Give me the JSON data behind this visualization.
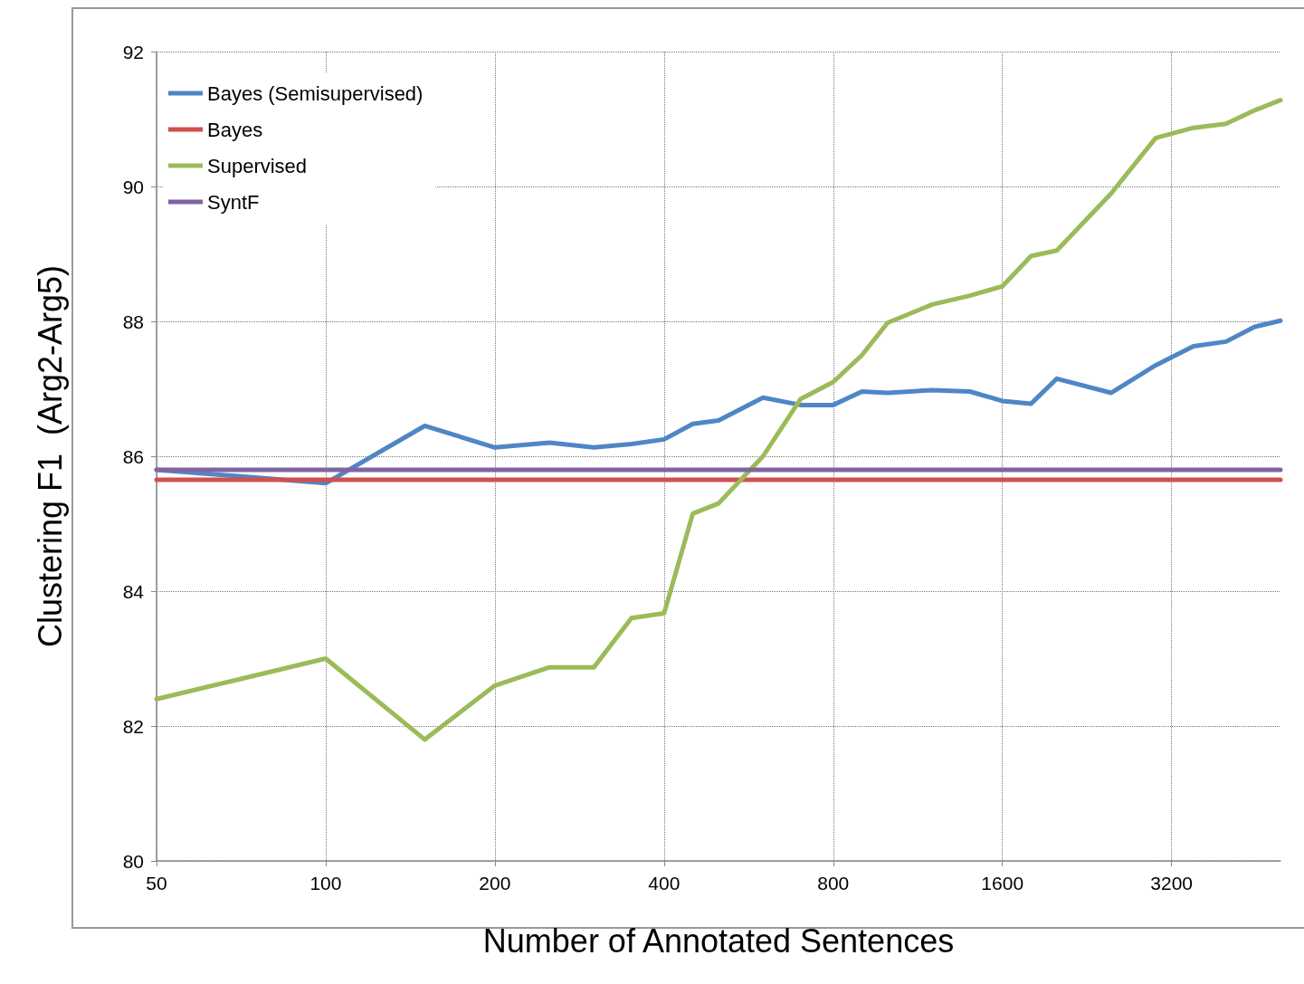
{
  "chart_data": {
    "type": "line",
    "xlabel": "Number of Annotated Sentences",
    "ylabel": "Clustering F1  (Arg2-Arg5)",
    "log": "x",
    "xlim": [
      50,
      5000
    ],
    "xticks": [
      50,
      100,
      200,
      400,
      800,
      1600,
      3200
    ],
    "ylim": [
      80,
      92
    ],
    "yticks": [
      80,
      82,
      84,
      86,
      88,
      90,
      92
    ],
    "grid": true,
    "legend": "top left",
    "marker": "none",
    "line_style": "solid",
    "series": [
      {
        "name": "Bayes (Semisupervised)",
        "color": "#4f86c6",
        "x": [
          50,
          100,
          150,
          200,
          250,
          300,
          350,
          400,
          450,
          500,
          600,
          700,
          800,
          900,
          1000,
          1200,
          1400,
          1600,
          1800,
          2000,
          2500,
          3000,
          3500,
          4000,
          4500,
          5000
        ],
        "values": [
          85.8,
          85.6,
          86.45,
          86.13,
          86.2,
          86.13,
          86.18,
          86.25,
          86.48,
          86.53,
          86.87,
          86.76,
          86.76,
          86.96,
          86.94,
          86.98,
          86.96,
          86.82,
          86.78,
          87.15,
          86.94,
          87.35,
          87.63,
          87.7,
          87.92,
          88.01
        ]
      },
      {
        "name": "Bayes",
        "color": "#d0504d",
        "x": [
          50,
          5000
        ],
        "values": [
          85.65,
          85.65
        ]
      },
      {
        "name": "Supervised",
        "color": "#9bbb59",
        "x": [
          50,
          100,
          150,
          200,
          250,
          300,
          350,
          400,
          450,
          500,
          600,
          700,
          800,
          900,
          1000,
          1200,
          1400,
          1600,
          1800,
          2000,
          2500,
          3000,
          3500,
          4000,
          4500,
          5000
        ],
        "values": [
          82.4,
          83.0,
          81.8,
          82.6,
          82.87,
          82.87,
          83.6,
          83.67,
          85.15,
          85.3,
          86.0,
          86.85,
          87.1,
          87.5,
          87.98,
          88.25,
          88.38,
          88.52,
          88.97,
          89.05,
          89.9,
          90.72,
          90.87,
          90.93,
          91.13,
          91.28
        ]
      },
      {
        "name": "SyntF",
        "color": "#8064a2",
        "x": [
          50,
          5000
        ],
        "values": [
          85.8,
          85.8
        ]
      }
    ]
  }
}
